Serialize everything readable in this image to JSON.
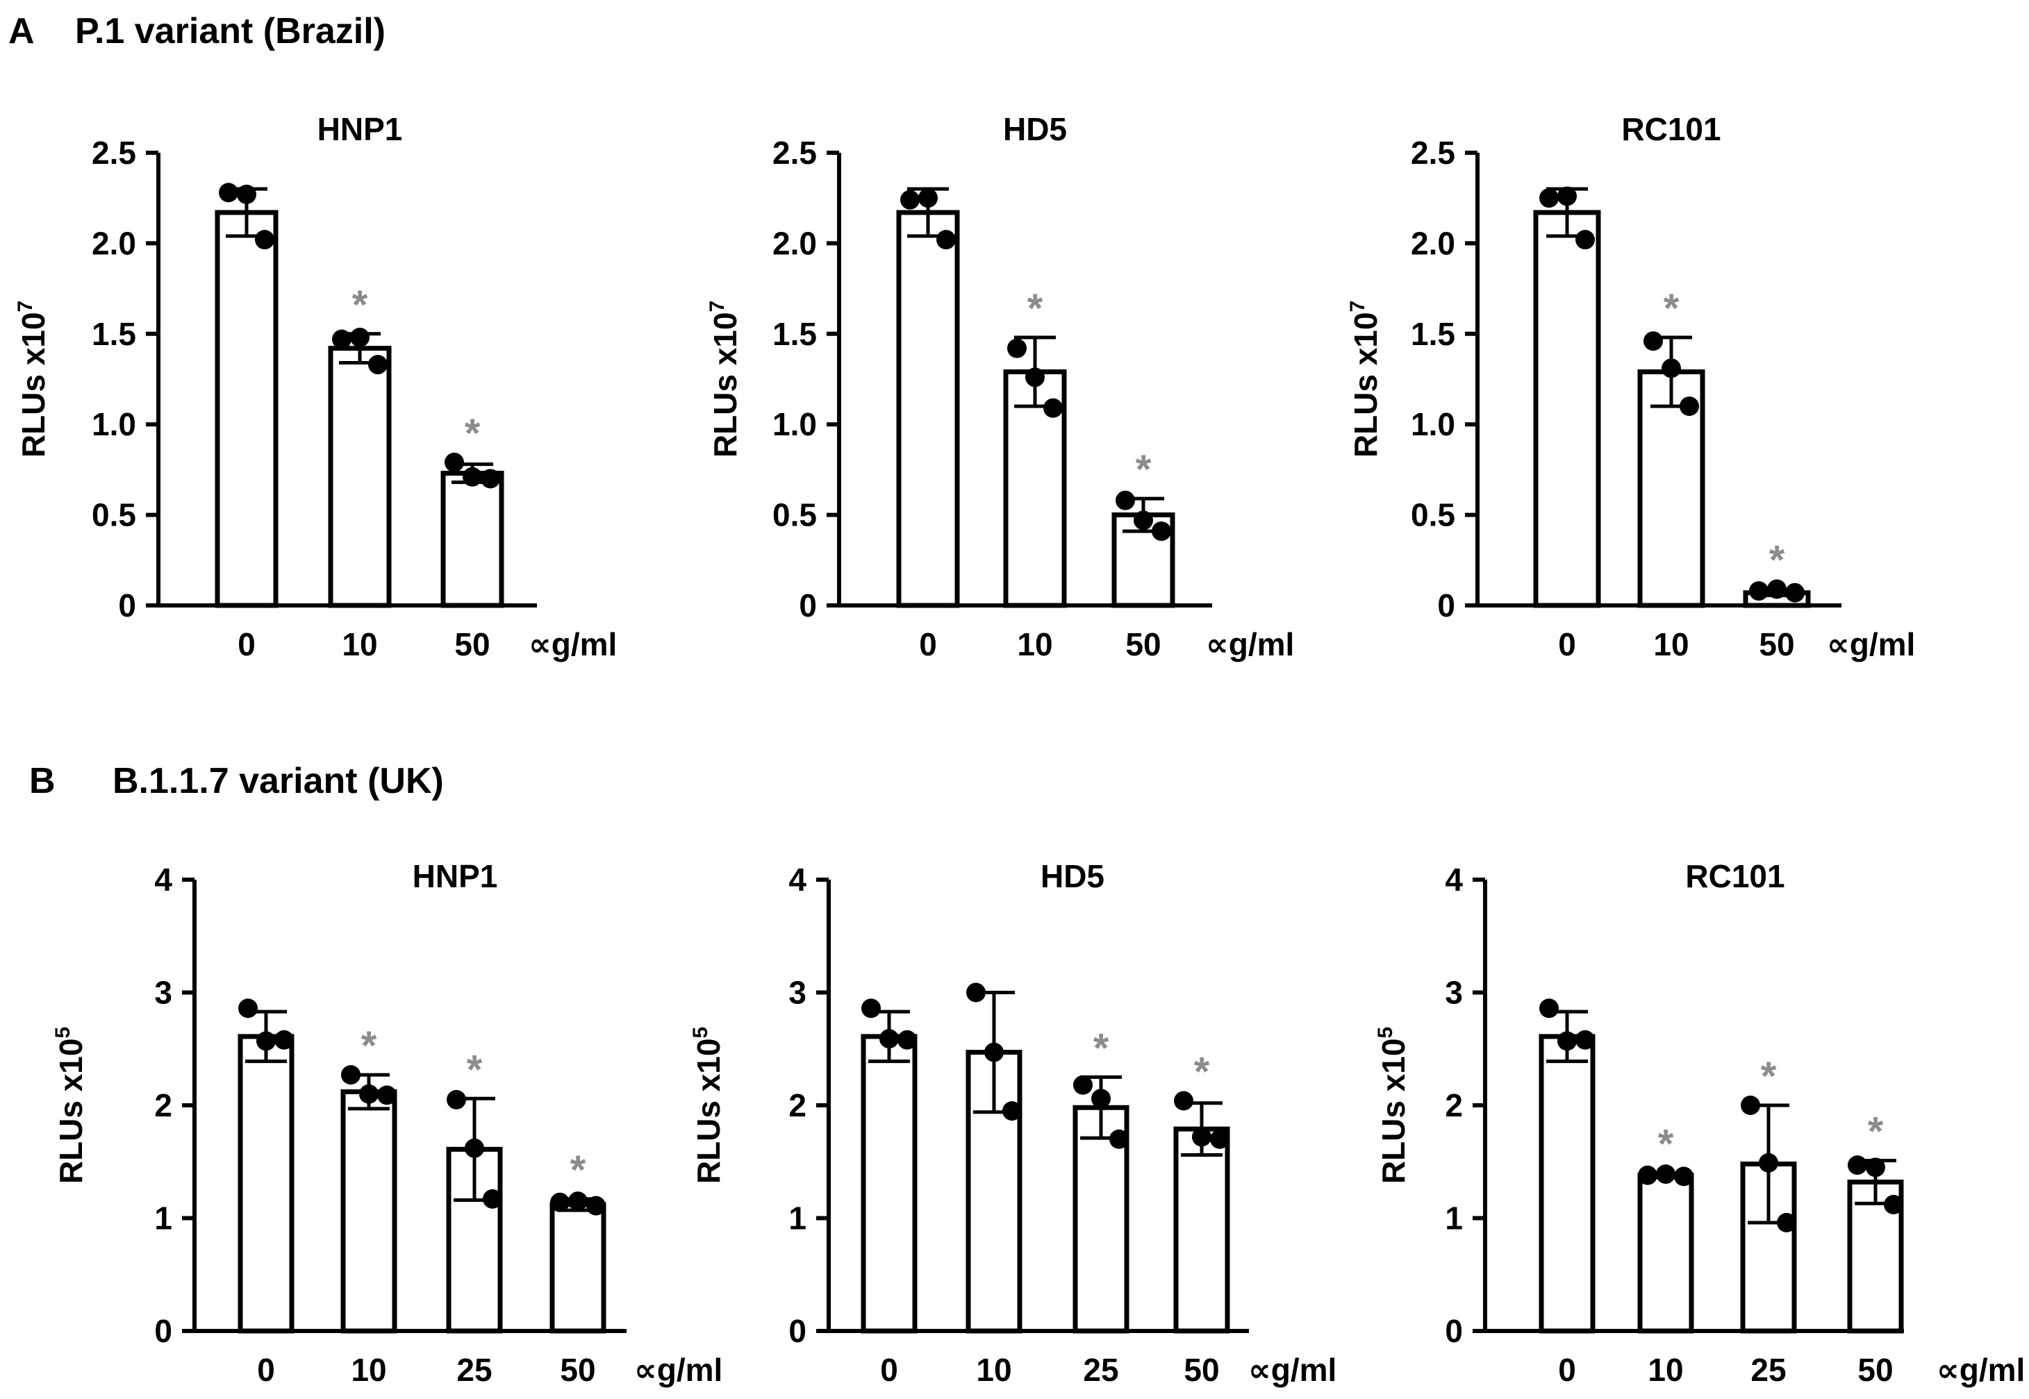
{
  "panels": [
    {
      "letter": "A",
      "title": "P.1 variant (Brazil)",
      "charts": [
        {
          "type": "bar",
          "title": "HNP1",
          "ylabel_main": "RLUs x10",
          "ylabel_exp": "7",
          "unit": "∝g/ml",
          "categories": [
            "0",
            "10",
            "50"
          ],
          "values": [
            2.17,
            1.42,
            0.73
          ],
          "err": [
            0.13,
            0.08,
            0.05
          ],
          "points": [
            [
              2.28,
              2.27,
              2.02
            ],
            [
              1.47,
              1.48,
              1.33
            ],
            [
              0.79,
              0.71,
              0.7
            ]
          ],
          "sig": [
            false,
            true,
            true
          ],
          "ylim": [
            0,
            2.5
          ],
          "ticks": [
            "0",
            "0.5",
            "1.0",
            "1.5",
            "2.0",
            "2.5"
          ],
          "tick_values": [
            0,
            0.5,
            1.0,
            1.5,
            2.0,
            2.5
          ]
        },
        {
          "type": "bar",
          "title": "HD5",
          "ylabel_main": "RLUs x10",
          "ylabel_exp": "7",
          "unit": "∝g/ml",
          "categories": [
            "0",
            "10",
            "50"
          ],
          "values": [
            2.17,
            1.29,
            0.5
          ],
          "err": [
            0.13,
            0.19,
            0.09
          ],
          "points": [
            [
              2.24,
              2.25,
              2.02
            ],
            [
              1.42,
              1.26,
              1.09
            ],
            [
              0.58,
              0.47,
              0.41
            ]
          ],
          "sig": [
            false,
            true,
            true
          ],
          "ylim": [
            0,
            2.5
          ],
          "ticks": [
            "0",
            "0.5",
            "1.0",
            "1.5",
            "2.0",
            "2.5"
          ],
          "tick_values": [
            0,
            0.5,
            1.0,
            1.5,
            2.0,
            2.5
          ]
        },
        {
          "type": "bar",
          "title": "RC101",
          "ylabel_main": "RLUs x10",
          "ylabel_exp": "7",
          "unit": "∝g/ml",
          "categories": [
            "0",
            "10",
            "50"
          ],
          "values": [
            2.17,
            1.29,
            0.07
          ],
          "err": [
            0.13,
            0.19,
            0.015
          ],
          "points": [
            [
              2.25,
              2.26,
              2.02
            ],
            [
              1.46,
              1.31,
              1.1
            ],
            [
              0.08,
              0.09,
              0.07
            ]
          ],
          "sig": [
            false,
            true,
            true
          ],
          "ylim": [
            0,
            2.5
          ],
          "ticks": [
            "0",
            "0.5",
            "1.0",
            "1.5",
            "2.0",
            "2.5"
          ],
          "tick_values": [
            0,
            0.5,
            1.0,
            1.5,
            2.0,
            2.5
          ]
        }
      ]
    },
    {
      "letter": "B",
      "title": "B.1.1.7 variant (UK)",
      "charts": [
        {
          "type": "bar",
          "title": "HNP1",
          "ylabel_main": "RLUs x10",
          "ylabel_exp": "5",
          "unit": "∝g/ml",
          "categories": [
            "0",
            "10",
            "25",
            "50"
          ],
          "values": [
            2.61,
            2.12,
            1.61,
            1.12
          ],
          "err": [
            0.22,
            0.15,
            0.45,
            0.05
          ],
          "points": [
            [
              2.86,
              2.57,
              2.58
            ],
            [
              2.27,
              2.1,
              2.09
            ],
            [
              2.05,
              1.62,
              1.17
            ],
            [
              1.14,
              1.15,
              1.11
            ]
          ],
          "sig": [
            false,
            true,
            true,
            true
          ],
          "ylim": [
            0,
            4
          ],
          "ticks": [
            "0",
            "1",
            "2",
            "3",
            "4"
          ],
          "tick_values": [
            0,
            1,
            2,
            3,
            4
          ]
        },
        {
          "type": "bar",
          "title": "HD5",
          "ylabel_main": "RLUs x10",
          "ylabel_exp": "5",
          "unit": "∝g/ml",
          "categories": [
            "0",
            "10",
            "25",
            "50"
          ],
          "values": [
            2.61,
            2.47,
            1.98,
            1.79
          ],
          "err": [
            0.22,
            0.53,
            0.27,
            0.23
          ],
          "points": [
            [
              2.86,
              2.59,
              2.58
            ],
            [
              3.0,
              2.47,
              1.95
            ],
            [
              2.18,
              2.06,
              1.7
            ],
            [
              2.04,
              1.72,
              1.7
            ]
          ],
          "sig": [
            false,
            false,
            true,
            true
          ],
          "ylim": [
            0,
            4
          ],
          "ticks": [
            "0",
            "1",
            "2",
            "3",
            "4"
          ],
          "tick_values": [
            0,
            1,
            2,
            3,
            4
          ]
        },
        {
          "type": "bar",
          "title": "RC101",
          "ylabel_main": "RLUs x10",
          "ylabel_exp": "5",
          "unit": "∝g/ml",
          "categories": [
            "0",
            "10",
            "25",
            "50"
          ],
          "values": [
            2.61,
            1.38,
            1.48,
            1.32
          ],
          "err": [
            0.22,
            0.02,
            0.52,
            0.19
          ],
          "points": [
            [
              2.86,
              2.57,
              2.58
            ],
            [
              1.38,
              1.39,
              1.37
            ],
            [
              2.0,
              1.49,
              0.96
            ],
            [
              1.47,
              1.45,
              1.12
            ]
          ],
          "sig": [
            false,
            true,
            true,
            true
          ],
          "ylim": [
            0,
            4
          ],
          "ticks": [
            "0",
            "1",
            "2",
            "3",
            "4"
          ],
          "tick_values": [
            0,
            1,
            2,
            3,
            4
          ]
        }
      ]
    }
  ],
  "chart_data": [
    {
      "type": "bar",
      "title": "HNP1",
      "panel": "A",
      "categories": [
        "0",
        "10",
        "50"
      ],
      "values": [
        2.17,
        1.42,
        0.73
      ],
      "ylabel": "RLUs x10^7",
      "xlabel": "∝g/ml",
      "ylim": [
        0,
        2.5
      ]
    },
    {
      "type": "bar",
      "title": "HD5",
      "panel": "A",
      "categories": [
        "0",
        "10",
        "50"
      ],
      "values": [
        2.17,
        1.29,
        0.5
      ],
      "ylabel": "RLUs x10^7",
      "xlabel": "∝g/ml",
      "ylim": [
        0,
        2.5
      ]
    },
    {
      "type": "bar",
      "title": "RC101",
      "panel": "A",
      "categories": [
        "0",
        "10",
        "50"
      ],
      "values": [
        2.17,
        1.29,
        0.07
      ],
      "ylabel": "RLUs x10^7",
      "xlabel": "∝g/ml",
      "ylim": [
        0,
        2.5
      ]
    },
    {
      "type": "bar",
      "title": "HNP1",
      "panel": "B",
      "categories": [
        "0",
        "10",
        "25",
        "50"
      ],
      "values": [
        2.61,
        2.12,
        1.61,
        1.12
      ],
      "ylabel": "RLUs x10^5",
      "xlabel": "∝g/ml",
      "ylim": [
        0,
        4
      ]
    },
    {
      "type": "bar",
      "title": "HD5",
      "panel": "B",
      "categories": [
        "0",
        "10",
        "25",
        "50"
      ],
      "values": [
        2.61,
        2.47,
        1.98,
        1.79
      ],
      "ylabel": "RLUs x10^5",
      "xlabel": "∝g/ml",
      "ylim": [
        0,
        4
      ]
    },
    {
      "type": "bar",
      "title": "RC101",
      "panel": "B",
      "categories": [
        "0",
        "10",
        "25",
        "50"
      ],
      "values": [
        2.61,
        1.38,
        1.48,
        1.32
      ],
      "ylabel": "RLUs x10^5",
      "xlabel": "∝g/ml",
      "ylim": [
        0,
        4
      ]
    }
  ]
}
